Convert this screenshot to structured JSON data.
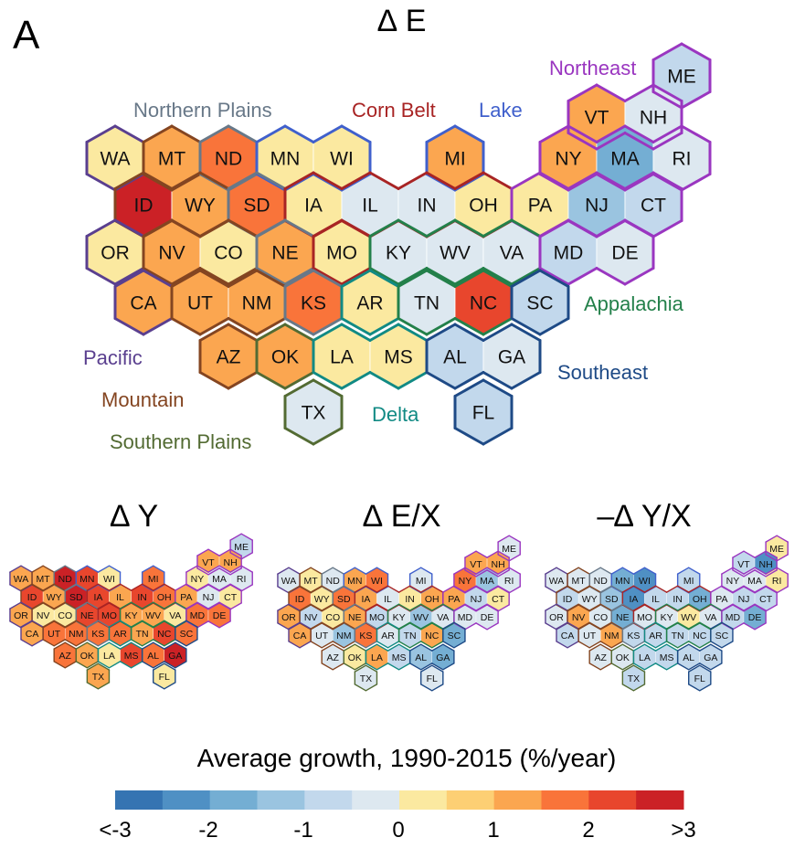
{
  "panel_letter": "A",
  "chart_data": {
    "type": "heatmap",
    "subtype": "hexagon-tile-map",
    "legend": {
      "title": "Average growth, 1990-2015 (%/year)",
      "bins": [
        -3,
        -2.5,
        -2,
        -1.5,
        -1,
        -0.5,
        0,
        0.5,
        1,
        1.5,
        2,
        2.5,
        3
      ],
      "colors": [
        "#3574b2",
        "#4f90c4",
        "#74aed3",
        "#9ac4e0",
        "#c2d8ec",
        "#dde8f0",
        "#fbe9a0",
        "#fdcf74",
        "#fba650",
        "#f9743a",
        "#e8462d",
        "#cb2126"
      ],
      "tick_labels": [
        "<-3",
        "-2",
        "-1",
        "0",
        "1",
        "2",
        ">3"
      ],
      "tick_values": [
        -3,
        -2,
        -1,
        0,
        1,
        2,
        3
      ]
    },
    "regions": [
      {
        "name": "Pacific",
        "color": "#5a3f8f",
        "states": [
          "WA",
          "OR",
          "CA"
        ]
      },
      {
        "name": "Mountain",
        "color": "#844521",
        "states": [
          "MT",
          "ID",
          "WY",
          "NV",
          "UT",
          "CO",
          "AZ",
          "NM"
        ]
      },
      {
        "name": "Northern Plains",
        "color": "#687888",
        "states": [
          "ND",
          "SD",
          "NE",
          "KS"
        ]
      },
      {
        "name": "Southern Plains",
        "color": "#536b33",
        "states": [
          "OK",
          "TX"
        ]
      },
      {
        "name": "Lake",
        "color": "#4060cc",
        "states": [
          "MN",
          "WI",
          "MI"
        ]
      },
      {
        "name": "Corn Belt",
        "color": "#a82424",
        "states": [
          "IA",
          "IL",
          "IN",
          "OH",
          "MO"
        ]
      },
      {
        "name": "Delta",
        "color": "#118a84",
        "states": [
          "AR",
          "LA",
          "MS"
        ]
      },
      {
        "name": "Appalachia",
        "color": "#23804a",
        "states": [
          "KY",
          "WV",
          "VA",
          "TN",
          "NC"
        ]
      },
      {
        "name": "Southeast",
        "color": "#1e4a86",
        "states": [
          "SC",
          "AL",
          "GA",
          "FL"
        ]
      },
      {
        "name": "Northeast",
        "color": "#9a36c0",
        "states": [
          "ME",
          "NH",
          "VT",
          "MA",
          "RI",
          "NY",
          "CT",
          "PA",
          "NJ",
          "DE",
          "MD"
        ]
      }
    ],
    "states": [
      {
        "id": "ME",
        "col": 10,
        "row": 0
      },
      {
        "id": "VT",
        "col": 8.5,
        "row": 1
      },
      {
        "id": "NH",
        "col": 9.5,
        "row": 1
      },
      {
        "id": "WA",
        "col": 0,
        "row": 2
      },
      {
        "id": "MT",
        "col": 1,
        "row": 2
      },
      {
        "id": "ND",
        "col": 2,
        "row": 2
      },
      {
        "id": "MN",
        "col": 3,
        "row": 2
      },
      {
        "id": "WI",
        "col": 4,
        "row": 2
      },
      {
        "id": "MI",
        "col": 6,
        "row": 2
      },
      {
        "id": "NY",
        "col": 8,
        "row": 2
      },
      {
        "id": "MA",
        "col": 9,
        "row": 2
      },
      {
        "id": "RI",
        "col": 10,
        "row": 2
      },
      {
        "id": "ID",
        "col": 0.5,
        "row": 3
      },
      {
        "id": "WY",
        "col": 1.5,
        "row": 3
      },
      {
        "id": "SD",
        "col": 2.5,
        "row": 3
      },
      {
        "id": "IA",
        "col": 3.5,
        "row": 3
      },
      {
        "id": "IL",
        "col": 4.5,
        "row": 3
      },
      {
        "id": "IN",
        "col": 5.5,
        "row": 3
      },
      {
        "id": "OH",
        "col": 6.5,
        "row": 3
      },
      {
        "id": "PA",
        "col": 7.5,
        "row": 3
      },
      {
        "id": "NJ",
        "col": 8.5,
        "row": 3
      },
      {
        "id": "CT",
        "col": 9.5,
        "row": 3
      },
      {
        "id": "OR",
        "col": 0,
        "row": 4
      },
      {
        "id": "NV",
        "col": 1,
        "row": 4
      },
      {
        "id": "CO",
        "col": 2,
        "row": 4
      },
      {
        "id": "NE",
        "col": 3,
        "row": 4
      },
      {
        "id": "MO",
        "col": 4,
        "row": 4
      },
      {
        "id": "KY",
        "col": 5,
        "row": 4
      },
      {
        "id": "WV",
        "col": 6,
        "row": 4
      },
      {
        "id": "VA",
        "col": 7,
        "row": 4
      },
      {
        "id": "MD",
        "col": 8,
        "row": 4
      },
      {
        "id": "DE",
        "col": 9,
        "row": 4
      },
      {
        "id": "CA",
        "col": 0.5,
        "row": 5
      },
      {
        "id": "UT",
        "col": 1.5,
        "row": 5
      },
      {
        "id": "NM",
        "col": 2.5,
        "row": 5
      },
      {
        "id": "KS",
        "col": 3.5,
        "row": 5
      },
      {
        "id": "AR",
        "col": 4.5,
        "row": 5
      },
      {
        "id": "TN",
        "col": 5.5,
        "row": 5
      },
      {
        "id": "NC",
        "col": 6.5,
        "row": 5
      },
      {
        "id": "SC",
        "col": 7.5,
        "row": 5
      },
      {
        "id": "AZ",
        "col": 2,
        "row": 6
      },
      {
        "id": "OK",
        "col": 3,
        "row": 6
      },
      {
        "id": "LA",
        "col": 4,
        "row": 6
      },
      {
        "id": "MS",
        "col": 5,
        "row": 6
      },
      {
        "id": "AL",
        "col": 6,
        "row": 6
      },
      {
        "id": "GA",
        "col": 7,
        "row": 6
      },
      {
        "id": "TX",
        "col": 3.5,
        "row": 7
      },
      {
        "id": "FL",
        "col": 6.5,
        "row": 7
      }
    ],
    "maps": [
      {
        "title": "∆ E",
        "values": {
          "ME": -0.8,
          "VT": 1.2,
          "NH": -0.3,
          "WA": 0.3,
          "MT": 1.2,
          "ND": 1.7,
          "MN": 0.3,
          "WI": 0.3,
          "MI": 1.2,
          "NY": 1.2,
          "MA": -1.8,
          "RI": -0.3,
          "ID": 2.7,
          "WY": 1.2,
          "SD": 1.7,
          "IA": 0.3,
          "IL": -0.3,
          "IN": -0.3,
          "OH": 0.3,
          "PA": 0.3,
          "NJ": -1.3,
          "CT": -0.8,
          "OR": 0.3,
          "NV": 1.2,
          "CO": 0.3,
          "NE": 1.2,
          "MO": 0.3,
          "KY": -0.3,
          "WV": -0.3,
          "VA": -0.3,
          "MD": -0.8,
          "DE": -0.3,
          "CA": 1.2,
          "UT": 1.2,
          "NM": 1.2,
          "KS": 1.7,
          "AR": 0.3,
          "TN": -0.3,
          "NC": 2.2,
          "SC": -0.8,
          "AZ": 1.2,
          "OK": 1.2,
          "LA": 0.3,
          "MS": 0.3,
          "AL": -0.8,
          "GA": -0.3,
          "TX": -0.3,
          "FL": -0.8
        }
      },
      {
        "title": "∆ Y",
        "values": {
          "ME": -0.8,
          "VT": 1.2,
          "NH": 1.2,
          "WA": 1.2,
          "MT": 1.2,
          "ND": 2.7,
          "MN": 2.2,
          "WI": 0.3,
          "MI": 1.7,
          "NY": 0.3,
          "MA": -0.3,
          "RI": -0.3,
          "ID": 2.2,
          "WY": 1.2,
          "SD": 2.7,
          "IA": 2.2,
          "IL": 1.2,
          "IN": 2.2,
          "OH": 1.7,
          "PA": 1.2,
          "NJ": -0.3,
          "CT": 0.3,
          "OR": 1.2,
          "NV": 0.3,
          "CO": 0.3,
          "NE": 2.2,
          "MO": 2.2,
          "KY": 1.2,
          "WV": 1.2,
          "VA": 0.3,
          "MD": 1.7,
          "DE": 1.7,
          "CA": 1.2,
          "UT": 1.7,
          "NM": 1.7,
          "KS": 1.7,
          "AR": 1.7,
          "TN": 1.2,
          "NC": 2.2,
          "SC": 1.7,
          "AZ": 1.7,
          "OK": 1.2,
          "LA": 0.3,
          "MS": 2.2,
          "AL": 1.7,
          "GA": 2.7,
          "TX": 1.2,
          "FL": 0.3
        }
      },
      {
        "title": "∆ E/X",
        "values": {
          "ME": -0.3,
          "VT": 1.2,
          "NH": 1.2,
          "WA": -0.3,
          "MT": 0.3,
          "ND": -0.3,
          "MN": 1.2,
          "WI": 1.7,
          "MI": -0.3,
          "NY": 1.7,
          "MA": -1.3,
          "RI": -0.3,
          "ID": 1.7,
          "WY": 0.3,
          "SD": 1.7,
          "IA": 1.2,
          "IL": -0.3,
          "IN": 0.3,
          "OH": 1.2,
          "PA": 1.2,
          "NJ": -0.8,
          "CT": 0.3,
          "OR": 1.2,
          "NV": -0.8,
          "CO": 0.3,
          "NE": 1.2,
          "MO": -0.8,
          "KY": -0.3,
          "WV": -1.3,
          "VA": -0.3,
          "MD": -0.3,
          "DE": -0.3,
          "CA": 1.2,
          "UT": -0.3,
          "NM": -1.3,
          "KS": 1.7,
          "AR": -0.3,
          "TN": -0.8,
          "NC": 1.2,
          "SC": -1.8,
          "AZ": -0.3,
          "OK": 0.3,
          "LA": 1.2,
          "MS": -0.8,
          "AL": -1.3,
          "GA": -1.8,
          "TX": -0.3,
          "FL": -0.3
        }
      },
      {
        "title": "–∆ Y/X",
        "values": {
          "ME": 0.3,
          "VT": -0.8,
          "NH": -2.3,
          "WA": -0.3,
          "MT": -0.3,
          "ND": -0.3,
          "MN": -1.8,
          "WI": -2.3,
          "MI": -0.8,
          "NY": -0.3,
          "MA": -0.3,
          "RI": 0.3,
          "ID": -0.8,
          "WY": -0.3,
          "SD": -1.3,
          "IA": -2.3,
          "IL": -0.8,
          "IN": -0.8,
          "OH": -1.8,
          "PA": -0.3,
          "NJ": -0.8,
          "CT": -0.8,
          "OR": -0.3,
          "NV": 1.2,
          "CO": -0.3,
          "NE": -1.8,
          "MO": -0.3,
          "KY": -0.3,
          "WV": 0.3,
          "VA": -0.3,
          "MD": -0.8,
          "DE": -1.8,
          "CA": -0.8,
          "UT": -0.3,
          "NM": 1.2,
          "KS": -0.8,
          "AR": -0.8,
          "TN": -0.8,
          "NC": -0.8,
          "SC": -0.8,
          "AZ": -0.3,
          "OK": -0.3,
          "LA": -0.8,
          "MS": -0.8,
          "AL": -0.8,
          "GA": -0.8,
          "TX": -0.8,
          "FL": -0.8
        }
      }
    ]
  }
}
